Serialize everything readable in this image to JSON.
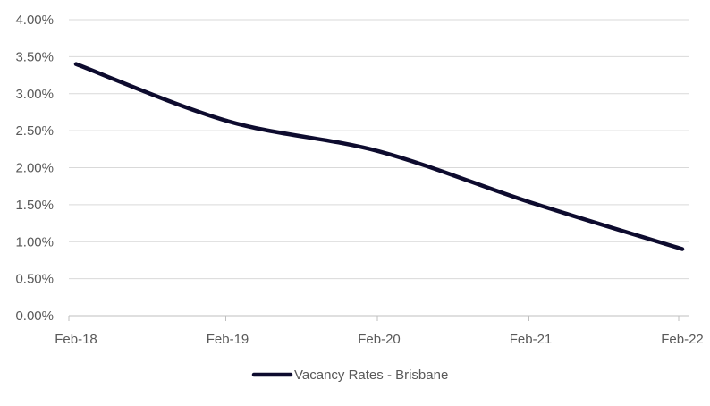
{
  "chart_data": {
    "type": "line",
    "x": [
      "Feb-18",
      "Feb-19",
      "Feb-20",
      "Feb-21",
      "Feb-22"
    ],
    "series": [
      {
        "name": "Vacancy Rates - Brisbane",
        "color": "#0d0b2e",
        "values": [
          0.034,
          0.0263,
          0.0222,
          0.0153,
          0.009
        ]
      }
    ],
    "y_ticks": [
      "0.00%",
      "0.50%",
      "1.00%",
      "1.50%",
      "2.00%",
      "2.50%",
      "3.00%",
      "3.50%",
      "4.00%"
    ],
    "ylim": [
      0,
      0.04
    ],
    "y_format": "percent",
    "smooth": true,
    "grid": true,
    "legend_position": "bottom",
    "colors": {
      "grid": "#d9d9d9",
      "axis": "#bfbfbf",
      "tick_text": "#595959"
    }
  }
}
